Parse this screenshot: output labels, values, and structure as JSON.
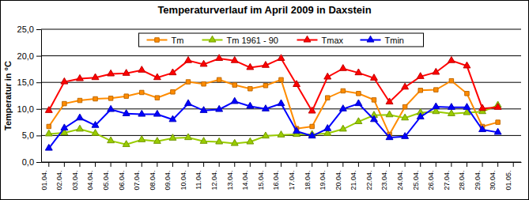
{
  "chart_data": {
    "type": "line",
    "title": "Temperaturverlauf im April 2009 in Daxstein",
    "y_label": "Temperatur in °C",
    "categories": [
      "01.04.",
      "02.04.",
      "03.04.",
      "04.04.",
      "05.04.",
      "06.04.",
      "07.04.",
      "08.04.",
      "09.04.",
      "10.04.",
      "11.04.",
      "12.04.",
      "13.04.",
      "14.04.",
      "15.04.",
      "16.04.",
      "17.04.",
      "18.04.",
      "19.04.",
      "20.04.",
      "21.04.",
      "22.04.",
      "23.04.",
      "24.04.",
      "25.04.",
      "26.04.",
      "27.04.",
      "28.04.",
      "29.04.",
      "30.04.",
      "01.05."
    ],
    "series": [
      {
        "name": "Tm",
        "color": "#ff8c00",
        "marker": "square",
        "values": [
          6.7,
          11.0,
          11.6,
          11.9,
          12.0,
          12.4,
          13.1,
          12.1,
          13.2,
          15.1,
          14.7,
          15.5,
          14.5,
          13.8,
          14.4,
          15.5,
          6.3,
          6.7,
          12.1,
          13.4,
          12.9,
          11.7,
          5.2,
          10.4,
          13.5,
          13.6,
          15.3,
          12.9,
          6.7,
          7.5,
          null
        ]
      },
      {
        "name": "Tm 1961 - 90",
        "color": "#99cc00",
        "marker": "triangle",
        "values": [
          5.3,
          5.5,
          6.2,
          5.4,
          4.0,
          3.3,
          4.2,
          3.9,
          4.5,
          4.6,
          3.9,
          3.8,
          3.5,
          3.8,
          4.9,
          5.1,
          5.2,
          5.2,
          5.4,
          6.2,
          7.6,
          8.8,
          8.9,
          8.3,
          9.3,
          9.5,
          9.1,
          9.3,
          9.5,
          10.7,
          null
        ]
      },
      {
        "name": "Tmax",
        "color": "#ff0000",
        "marker": "triangle",
        "values": [
          9.7,
          15.1,
          15.7,
          15.9,
          16.6,
          16.7,
          17.3,
          15.9,
          16.8,
          19.1,
          18.4,
          19.5,
          19.1,
          17.8,
          18.2,
          19.5,
          14.6,
          9.6,
          16.0,
          17.6,
          16.8,
          15.8,
          11.3,
          14.1,
          16.1,
          16.9,
          19.1,
          18.1,
          10.1,
          10.3,
          null
        ]
      },
      {
        "name": "Tmin",
        "color": "#0000ff",
        "marker": "triangle",
        "values": [
          2.6,
          6.4,
          8.3,
          6.9,
          9.9,
          9.1,
          9.0,
          9.0,
          8.0,
          11.0,
          9.7,
          9.9,
          11.4,
          10.5,
          10.0,
          11.0,
          5.8,
          4.9,
          6.3,
          10.0,
          11.0,
          8.0,
          4.6,
          4.8,
          8.5,
          10.4,
          10.3,
          10.3,
          6.1,
          5.6,
          null
        ]
      }
    ],
    "ylim": [
      0,
      25
    ],
    "yticks": [
      {
        "value": 0,
        "label": "0,0"
      },
      {
        "value": 5,
        "label": "5,0"
      },
      {
        "value": 10,
        "label": "10,0"
      },
      {
        "value": 15,
        "label": "15,0"
      },
      {
        "value": 20,
        "label": "20,0"
      },
      {
        "value": 25,
        "label": "25,0"
      }
    ],
    "grid": true,
    "legend": "top"
  }
}
